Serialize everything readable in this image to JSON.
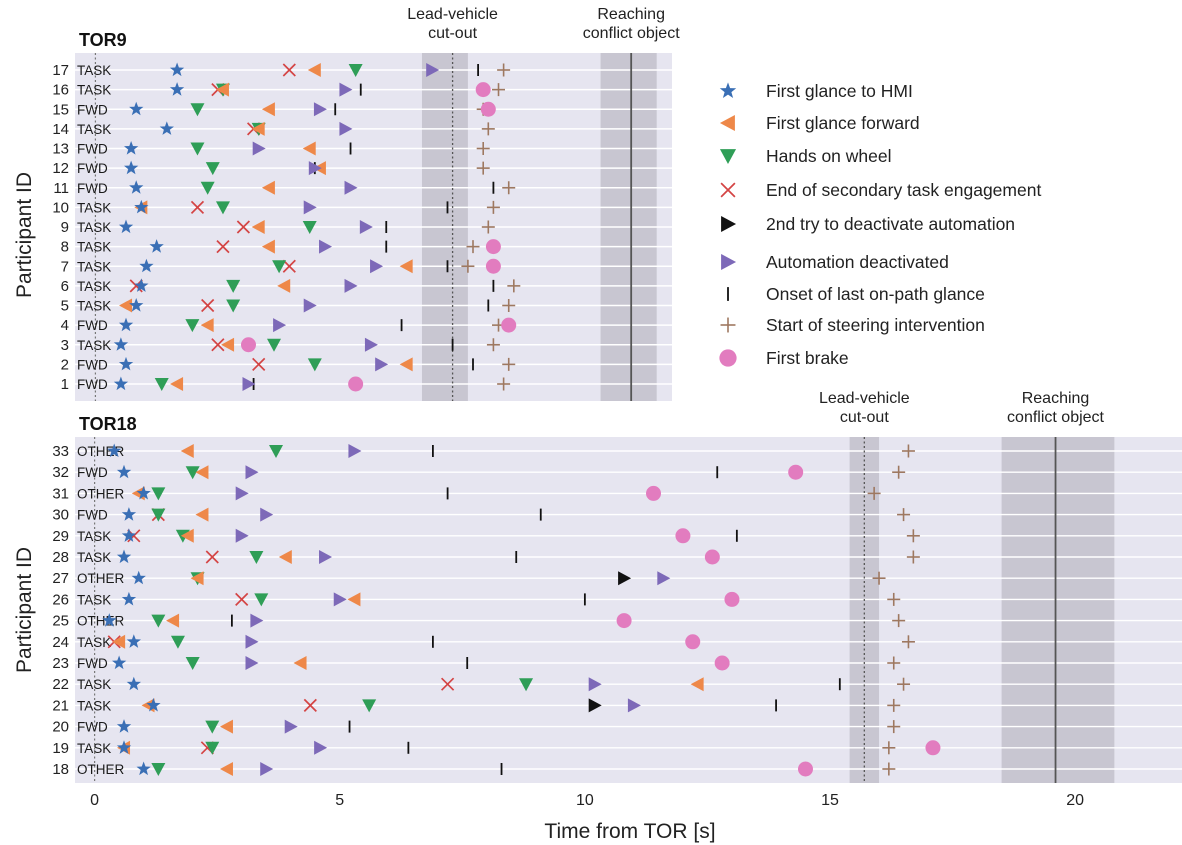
{
  "figure": {
    "x_axis_label": "Time from TOR [s]",
    "y_axis_label": "Participant ID",
    "x_ticks": [
      "0",
      "5",
      "10",
      "15",
      "20"
    ]
  },
  "legend": [
    {
      "key": "hmi",
      "label": "First glance to HMI",
      "marker": "star",
      "color": "#3a6fb5"
    },
    {
      "key": "fwd",
      "label": "First glance forward",
      "marker": "tri-left",
      "color": "#ee8849"
    },
    {
      "key": "hands",
      "label": "Hands on wheel",
      "marker": "tri-down",
      "color": "#2f9e57"
    },
    {
      "key": "end",
      "label": "End of secondary task engagement",
      "marker": "x",
      "color": "#d44444"
    },
    {
      "key": "second",
      "label": "2nd try to deactivate automation",
      "marker": "tri-right",
      "color": "#111111"
    },
    {
      "key": "deact",
      "label": "Automation deactivated",
      "marker": "tri-right",
      "color": "#7d69b8"
    },
    {
      "key": "onset",
      "label": "Onset of last on-path glance",
      "marker": "vline",
      "color": "#111111"
    },
    {
      "key": "steer",
      "label": "Start of steering intervention",
      "marker": "plus",
      "color": "#9e7860"
    },
    {
      "key": "brake",
      "label": "First brake",
      "marker": "circle",
      "color": "#e27cbf"
    }
  ],
  "chart_data": [
    {
      "type": "scatter",
      "title": "TOR9",
      "xlim": [
        -0.4,
        11.3
      ],
      "zones": [
        {
          "label": "Lead-vehicle\ncut-out",
          "x0": 6.4,
          "x1": 7.3,
          "line": 7.0,
          "line_style": "dotted"
        },
        {
          "label": "Reaching\nconflict object",
          "x0": 9.9,
          "x1": 11.0,
          "line": 10.5,
          "line_style": "solid"
        }
      ],
      "rows": [
        {
          "id": "17",
          "cond": "TASK",
          "hmi": 1.6,
          "end": 3.8,
          "fwd": 4.3,
          "hands": 5.1,
          "deact": 6.6,
          "onset": 7.5,
          "steer": 8.0
        },
        {
          "id": "16",
          "cond": "TASK",
          "hmi": 1.6,
          "end": 2.4,
          "fwd": 2.5,
          "hands": 2.5,
          "deact": 4.9,
          "onset": 5.2,
          "brake": 7.6,
          "steer": 7.9
        },
        {
          "id": "15",
          "cond": "FWD",
          "hmi": 0.8,
          "hands": 2.0,
          "fwd": 3.4,
          "deact": 4.4,
          "onset": 4.7,
          "steer": 7.6,
          "brake": 7.7
        },
        {
          "id": "14",
          "cond": "TASK",
          "hmi": 1.4,
          "end": 3.1,
          "fwd": 3.2,
          "hands": 3.2,
          "deact": 4.9,
          "steer": 7.7
        },
        {
          "id": "13",
          "cond": "FWD",
          "hmi": 0.7,
          "hands": 2.0,
          "deact": 3.2,
          "fwd": 4.2,
          "onset": 5.0,
          "steer": 7.6
        },
        {
          "id": "12",
          "cond": "FWD",
          "hmi": 0.7,
          "hands": 2.3,
          "deact": 4.3,
          "fwd": 4.4,
          "onset": 4.3,
          "steer": 7.6
        },
        {
          "id": "11",
          "cond": "FWD",
          "hmi": 0.8,
          "hands": 2.2,
          "fwd": 3.4,
          "deact": 5.0,
          "onset": 7.8,
          "steer": 8.1
        },
        {
          "id": "10",
          "cond": "TASK",
          "hmi": 0.9,
          "fwd": 0.9,
          "end": 2.0,
          "hands": 2.5,
          "deact": 4.2,
          "onset": 6.9,
          "steer": 7.8
        },
        {
          "id": "9",
          "cond": "TASK",
          "hmi": 0.6,
          "end": 2.9,
          "fwd": 3.2,
          "hands": 4.2,
          "deact": 5.3,
          "onset": 5.7,
          "steer": 7.7
        },
        {
          "id": "8",
          "cond": "TASK",
          "hmi": 1.2,
          "end": 2.5,
          "fwd": 3.4,
          "deact": 4.5,
          "onset": 5.7,
          "steer": 7.4,
          "brake": 7.8
        },
        {
          "id": "7",
          "cond": "TASK",
          "hmi": 1.0,
          "hands": 3.6,
          "end": 3.8,
          "deact": 5.5,
          "fwd": 6.1,
          "onset": 6.9,
          "steer": 7.3,
          "brake": 7.8
        },
        {
          "id": "6",
          "cond": "TASK",
          "hmi": 0.9,
          "end": 0.8,
          "hands": 2.7,
          "fwd": 3.7,
          "deact": 5.0,
          "onset": 7.8,
          "steer": 8.2
        },
        {
          "id": "5",
          "cond": "TASK",
          "hmi": 0.8,
          "fwd": 0.6,
          "end": 2.2,
          "hands": 2.7,
          "deact": 4.2,
          "onset": 7.7,
          "steer": 8.1
        },
        {
          "id": "4",
          "cond": "FWD",
          "hmi": 0.6,
          "hands": 1.9,
          "fwd": 2.2,
          "deact": 3.6,
          "onset": 6.0,
          "steer": 7.9,
          "brake": 8.1
        },
        {
          "id": "3",
          "cond": "TASK",
          "hmi": 0.5,
          "end": 2.4,
          "fwd": 2.6,
          "brake": 3.0,
          "hands": 3.5,
          "deact": 5.4,
          "onset": 7.0,
          "steer": 7.8
        },
        {
          "id": "2",
          "cond": "FWD",
          "hmi": 0.6,
          "end": 3.2,
          "hands": 4.3,
          "deact": 5.6,
          "fwd": 6.1,
          "onset": 7.4,
          "steer": 8.1
        },
        {
          "id": "1",
          "cond": "FWD",
          "hmi": 0.5,
          "hands": 1.3,
          "fwd": 1.6,
          "deact": 3.0,
          "onset": 3.1,
          "brake": 5.1,
          "steer": 8.0
        }
      ]
    },
    {
      "type": "scatter",
      "title": "TOR18",
      "xlim": [
        -0.4,
        22.2
      ],
      "zones": [
        {
          "label": "Lead-vehicle\ncut-out",
          "x0": 15.4,
          "x1": 16.0,
          "line": 15.7,
          "line_style": "dotted"
        },
        {
          "label": "Reaching\nconflict object",
          "x0": 18.5,
          "x1": 20.8,
          "line": 19.6,
          "line_style": "solid"
        }
      ],
      "rows": [
        {
          "id": "33",
          "cond": "OTHER",
          "hmi": 0.4,
          "fwd": 1.9,
          "hands": 3.7,
          "deact": 5.3,
          "onset": 6.9,
          "steer": 16.6
        },
        {
          "id": "32",
          "cond": "FWD",
          "hmi": 0.6,
          "hands": 2.0,
          "fwd": 2.2,
          "deact": 3.2,
          "onset": 12.7,
          "brake": 14.3,
          "steer": 16.4
        },
        {
          "id": "31",
          "cond": "OTHER",
          "fwd": 0.9,
          "hmi": 1.0,
          "hands": 1.3,
          "deact": 3.0,
          "onset": 7.2,
          "brake": 11.4,
          "steer": 15.9
        },
        {
          "id": "30",
          "cond": "FWD",
          "hmi": 0.7,
          "end": 1.3,
          "hands": 1.3,
          "fwd": 2.2,
          "deact": 3.5,
          "onset": 9.1,
          "steer": 16.5
        },
        {
          "id": "29",
          "cond": "TASK",
          "hmi": 0.7,
          "end": 0.8,
          "hands": 1.8,
          "fwd": 1.9,
          "deact": 3.0,
          "brake": 12.0,
          "onset": 13.1,
          "steer": 16.7
        },
        {
          "id": "28",
          "cond": "TASK",
          "hmi": 0.6,
          "end": 2.4,
          "hands": 3.3,
          "fwd": 3.9,
          "deact": 4.7,
          "onset": 8.6,
          "brake": 12.6,
          "steer": 16.7
        },
        {
          "id": "27",
          "cond": "OTHER",
          "hmi": 0.9,
          "fwd": 2.1,
          "hands": 2.1,
          "second": 10.8,
          "deact": 11.6,
          "steer": 16.0
        },
        {
          "id": "26",
          "cond": "TASK",
          "hmi": 0.7,
          "end": 3.0,
          "hands": 3.4,
          "deact": 5.0,
          "fwd": 5.3,
          "onset": 10.0,
          "brake": 13.0,
          "steer": 16.3
        },
        {
          "id": "25",
          "cond": "OTHER",
          "hmi": 0.3,
          "hands": 1.3,
          "fwd": 1.6,
          "onset": 2.8,
          "deact": 3.3,
          "brake": 10.8,
          "steer": 16.4
        },
        {
          "id": "24",
          "cond": "TASK",
          "end": 0.4,
          "fwd": 0.5,
          "hmi": 0.8,
          "hands": 1.7,
          "deact": 3.2,
          "onset": 6.9,
          "brake": 12.2,
          "steer": 16.6
        },
        {
          "id": "23",
          "cond": "FWD",
          "hmi": 0.5,
          "hands": 2.0,
          "deact": 3.2,
          "fwd": 4.2,
          "onset": 7.6,
          "brake": 12.8,
          "steer": 16.3
        },
        {
          "id": "22",
          "cond": "TASK",
          "hmi": 0.8,
          "end": 7.2,
          "hands": 8.8,
          "deact": 10.2,
          "fwd": 12.3,
          "onset": 15.2,
          "steer": 16.5
        },
        {
          "id": "21",
          "cond": "TASK",
          "fwd": 1.1,
          "hmi": 1.2,
          "end": 4.4,
          "hands": 5.6,
          "second": 10.2,
          "deact": 11.0,
          "onset": 13.9,
          "steer": 16.3
        },
        {
          "id": "20",
          "cond": "FWD",
          "hmi": 0.6,
          "hands": 2.4,
          "fwd": 2.7,
          "deact": 4.0,
          "onset": 5.2,
          "steer": 16.3
        },
        {
          "id": "19",
          "cond": "TASK",
          "fwd": 0.6,
          "hmi": 0.6,
          "end": 2.3,
          "hands": 2.4,
          "deact": 4.6,
          "onset": 6.4,
          "steer": 16.2,
          "brake": 17.1
        },
        {
          "id": "18",
          "cond": "OTHER",
          "hmi": 1.0,
          "hands": 1.3,
          "fwd": 2.7,
          "deact": 3.5,
          "onset": 8.3,
          "brake": 14.5,
          "steer": 16.2
        }
      ]
    }
  ]
}
